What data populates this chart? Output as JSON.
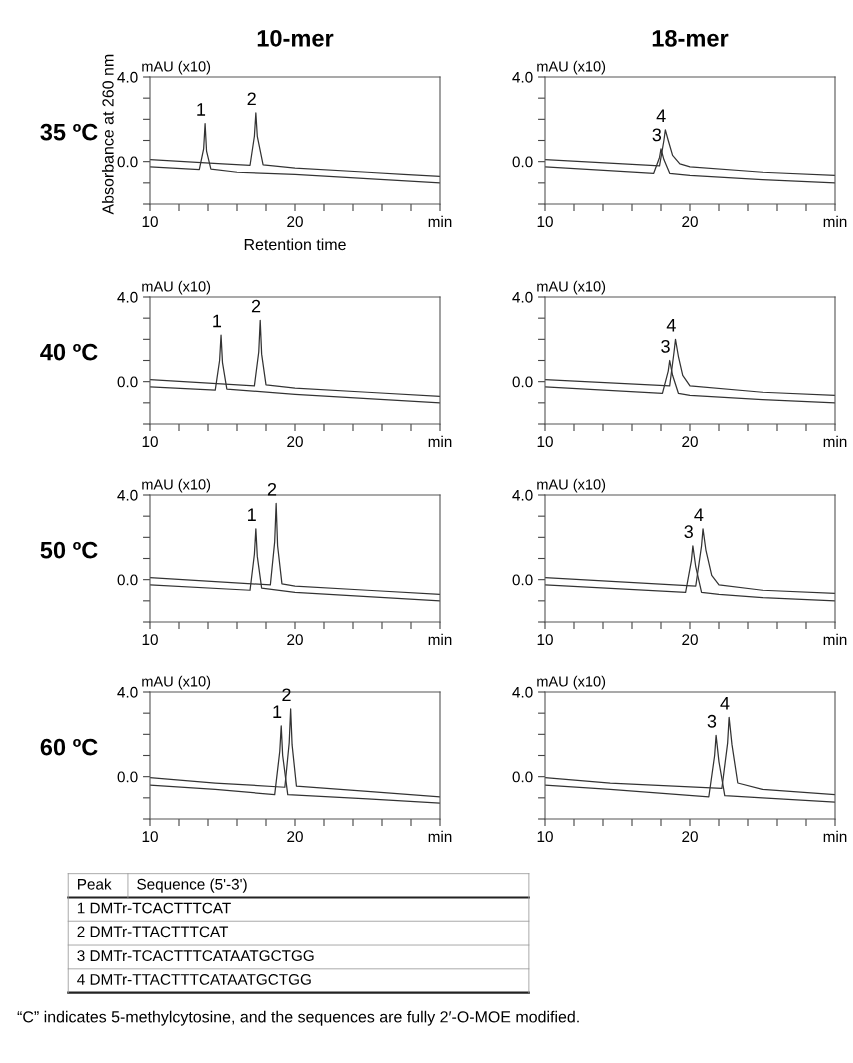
{
  "chart_data": [
    {
      "type": "line",
      "title": "10-mer",
      "subtitle": "35 ºC",
      "xlabel": "Retention time",
      "ylabel": "mAU (x10)",
      "xlim": [
        10,
        30
      ],
      "ylim": [
        -2,
        4
      ],
      "xticks": [
        10,
        {
          "value": 12,
          "label": null
        },
        {
          "value": 14,
          "label": null
        },
        {
          "value": 16,
          "label": null
        },
        {
          "value": 18,
          "label": null
        },
        20,
        {
          "value": 22,
          "label": null
        },
        {
          "value": 24,
          "label": null
        },
        {
          "value": 26,
          "label": null
        },
        {
          "value": 28,
          "label": null
        },
        {
          "value": 30,
          "label": "min"
        }
      ],
      "yticks": [
        {
          "value": -2,
          "label": null
        },
        {
          "value": -1,
          "label": null
        },
        {
          "value": 0,
          "label": "0.0"
        },
        {
          "value": 1,
          "label": null
        },
        {
          "value": 2,
          "label": null
        },
        {
          "value": 3,
          "label": null
        },
        {
          "value": 4,
          "label": "4.0"
        }
      ],
      "series": [
        {
          "color": "#333333",
          "x": [
            10,
            13.4,
            13.7,
            13.8,
            13.9,
            14.2,
            16,
            20,
            25,
            30
          ],
          "values": [
            -0.25,
            -0.38,
            0.6,
            1.8,
            0.5,
            -0.35,
            -0.5,
            -0.6,
            -0.8,
            -1.0
          ]
        },
        {
          "color": "#333333",
          "x": [
            10,
            15,
            16.9,
            17.2,
            17.3,
            17.4,
            17.8,
            20,
            25,
            27.5,
            30
          ],
          "values": [
            0.1,
            -0.1,
            -0.17,
            1.2,
            2.3,
            1.2,
            -0.15,
            -0.3,
            -0.5,
            -0.6,
            -0.7
          ]
        }
      ],
      "annotations": [
        "Absorbance at 260 nm",
        {
          "text": "1",
          "x": 13.8,
          "y": 1.8
        },
        {
          "text": "2",
          "x": 17.3,
          "y": 2.3
        }
      ]
    },
    {
      "type": "line",
      "title": "18-mer",
      "ylabel": "mAU (x10)",
      "xlim": [
        10,
        30
      ],
      "ylim": [
        -2,
        4
      ],
      "xticks": [
        10,
        {
          "value": 12,
          "label": null
        },
        {
          "value": 14,
          "label": null
        },
        {
          "value": 16,
          "label": null
        },
        {
          "value": 18,
          "label": null
        },
        20,
        {
          "value": 22,
          "label": null
        },
        {
          "value": 24,
          "label": null
        },
        {
          "value": 26,
          "label": null
        },
        {
          "value": 28,
          "label": null
        },
        {
          "value": 30,
          "label": "min"
        }
      ],
      "yticks": [
        {
          "value": -2,
          "label": null
        },
        {
          "value": -1,
          "label": null
        },
        {
          "value": 0,
          "label": "0.0"
        },
        {
          "value": 1,
          "label": null
        },
        {
          "value": 2,
          "label": null
        },
        {
          "value": 3,
          "label": null
        },
        {
          "value": 4,
          "label": "4.0"
        }
      ],
      "series": [
        {
          "color": "#333333",
          "x": [
            10,
            17.5,
            17.9,
            18.0,
            18.2,
            18.6,
            20,
            25,
            30
          ],
          "values": [
            -0.25,
            -0.55,
            0.2,
            0.6,
            0.1,
            -0.55,
            -0.65,
            -0.85,
            -1.0
          ]
        },
        {
          "color": "#333333",
          "x": [
            10,
            17.9,
            18.2,
            18.3,
            18.5,
            18.8,
            19.3,
            20,
            25,
            30
          ],
          "values": [
            0.1,
            -0.2,
            1.0,
            1.5,
            1.0,
            0.3,
            -0.1,
            -0.25,
            -0.5,
            -0.65
          ]
        }
      ],
      "annotations": [
        {
          "text": "3",
          "x": 18.0,
          "y": 0.6
        },
        {
          "text": "4",
          "x": 18.3,
          "y": 1.5
        }
      ]
    },
    {
      "type": "line",
      "subtitle": "40 ºC",
      "ylabel": "mAU (x10)",
      "xlim": [
        10,
        30
      ],
      "ylim": [
        -2,
        4
      ],
      "xticks": [
        10,
        {
          "value": 12,
          "label": null
        },
        {
          "value": 14,
          "label": null
        },
        {
          "value": 16,
          "label": null
        },
        {
          "value": 18,
          "label": null
        },
        20,
        {
          "value": 22,
          "label": null
        },
        {
          "value": 24,
          "label": null
        },
        {
          "value": 26,
          "label": null
        },
        {
          "value": 28,
          "label": null
        },
        {
          "value": 30,
          "label": "min"
        }
      ],
      "yticks": [
        {
          "value": -2,
          "label": null
        },
        {
          "value": -1,
          "label": null
        },
        {
          "value": 0,
          "label": "0.0"
        },
        {
          "value": 1,
          "label": null
        },
        {
          "value": 2,
          "label": null
        },
        {
          "value": 3,
          "label": null
        },
        {
          "value": 4,
          "label": "4.0"
        }
      ],
      "series": [
        {
          "color": "#333333",
          "x": [
            10,
            14.5,
            14.8,
            14.9,
            15.0,
            15.3,
            20,
            25,
            30
          ],
          "values": [
            -0.25,
            -0.4,
            1.0,
            2.2,
            0.9,
            -0.35,
            -0.6,
            -0.8,
            -1.0
          ]
        },
        {
          "color": "#333333",
          "x": [
            10,
            17.2,
            17.5,
            17.6,
            17.7,
            18.0,
            20,
            25,
            30
          ],
          "values": [
            0.1,
            -0.2,
            1.4,
            2.9,
            1.3,
            -0.15,
            -0.3,
            -0.5,
            -0.7
          ]
        }
      ],
      "annotations": [
        {
          "text": "1",
          "x": 14.9,
          "y": 2.2
        },
        {
          "text": "2",
          "x": 17.6,
          "y": 2.9
        }
      ]
    },
    {
      "type": "line",
      "ylabel": "mAU (x10)",
      "xlim": [
        10,
        30
      ],
      "ylim": [
        -2,
        4
      ],
      "xticks": [
        10,
        {
          "value": 12,
          "label": null
        },
        {
          "value": 14,
          "label": null
        },
        {
          "value": 16,
          "label": null
        },
        {
          "value": 18,
          "label": null
        },
        20,
        {
          "value": 22,
          "label": null
        },
        {
          "value": 24,
          "label": null
        },
        {
          "value": 26,
          "label": null
        },
        {
          "value": 28,
          "label": null
        },
        {
          "value": 30,
          "label": "min"
        }
      ],
      "yticks": [
        {
          "value": -2,
          "label": null
        },
        {
          "value": -1,
          "label": null
        },
        {
          "value": 0,
          "label": "0.0"
        },
        {
          "value": 1,
          "label": null
        },
        {
          "value": 2,
          "label": null
        },
        {
          "value": 3,
          "label": null
        },
        {
          "value": 4,
          "label": "4.0"
        }
      ],
      "series": [
        {
          "color": "#333333",
          "x": [
            10,
            18.1,
            18.5,
            18.6,
            18.8,
            19.2,
            20,
            25,
            30
          ],
          "values": [
            -0.25,
            -0.55,
            0.5,
            1.0,
            0.3,
            -0.55,
            -0.65,
            -0.85,
            -1.0
          ]
        },
        {
          "color": "#333333",
          "x": [
            10,
            18.6,
            18.9,
            19.0,
            19.2,
            19.5,
            20,
            25,
            30
          ],
          "values": [
            0.1,
            -0.2,
            1.4,
            2.0,
            1.2,
            0.3,
            -0.2,
            -0.5,
            -0.65
          ]
        }
      ],
      "annotations": [
        {
          "text": "3",
          "x": 18.6,
          "y": 1.0
        },
        {
          "text": "4",
          "x": 19.0,
          "y": 2.0
        }
      ]
    },
    {
      "type": "line",
      "subtitle": "50 ºC",
      "ylabel": "mAU (x10)",
      "xlim": [
        10,
        30
      ],
      "ylim": [
        -2,
        4
      ],
      "xticks": [
        10,
        {
          "value": 12,
          "label": null
        },
        {
          "value": 14,
          "label": null
        },
        {
          "value": 16,
          "label": null
        },
        {
          "value": 18,
          "label": null
        },
        20,
        {
          "value": 22,
          "label": null
        },
        {
          "value": 24,
          "label": null
        },
        {
          "value": 26,
          "label": null
        },
        {
          "value": 28,
          "label": null
        },
        {
          "value": 30,
          "label": "min"
        }
      ],
      "yticks": [
        {
          "value": -2,
          "label": null
        },
        {
          "value": -1,
          "label": null
        },
        {
          "value": 0,
          "label": "0.0"
        },
        {
          "value": 1,
          "label": null
        },
        {
          "value": 2,
          "label": null
        },
        {
          "value": 3,
          "label": null
        },
        {
          "value": 4,
          "label": "4.0"
        }
      ],
      "series": [
        {
          "color": "#333333",
          "x": [
            10,
            16.9,
            17.2,
            17.3,
            17.4,
            17.7,
            20,
            25,
            30
          ],
          "values": [
            -0.25,
            -0.5,
            1.2,
            2.4,
            1.1,
            -0.4,
            -0.6,
            -0.8,
            -1.0
          ]
        },
        {
          "color": "#333333",
          "x": [
            10,
            18.3,
            18.6,
            18.7,
            18.8,
            19.1,
            20,
            25,
            30
          ],
          "values": [
            0.1,
            -0.25,
            1.8,
            3.6,
            1.6,
            -0.2,
            -0.3,
            -0.5,
            -0.7
          ]
        }
      ],
      "annotations": [
        {
          "text": "1",
          "x": 17.3,
          "y": 2.4
        },
        {
          "text": "2",
          "x": 18.7,
          "y": 3.6
        }
      ]
    },
    {
      "type": "line",
      "ylabel": "mAU (x10)",
      "xlim": [
        10,
        30
      ],
      "ylim": [
        -2,
        4
      ],
      "xticks": [
        10,
        {
          "value": 12,
          "label": null
        },
        {
          "value": 14,
          "label": null
        },
        {
          "value": 16,
          "label": null
        },
        {
          "value": 18,
          "label": null
        },
        20,
        {
          "value": 22,
          "label": null
        },
        {
          "value": 24,
          "label": null
        },
        {
          "value": 26,
          "label": null
        },
        {
          "value": 28,
          "label": null
        },
        {
          "value": 30,
          "label": "min"
        }
      ],
      "yticks": [
        {
          "value": -2,
          "label": null
        },
        {
          "value": -1,
          "label": null
        },
        {
          "value": 0,
          "label": "0.0"
        },
        {
          "value": 1,
          "label": null
        },
        {
          "value": 2,
          "label": null
        },
        {
          "value": 3,
          "label": null
        },
        {
          "value": 4,
          "label": "4.0"
        }
      ],
      "series": [
        {
          "color": "#333333",
          "x": [
            10,
            19.7,
            20.1,
            20.2,
            20.4,
            20.8,
            22,
            25,
            30
          ],
          "values": [
            -0.25,
            -0.6,
            0.9,
            1.6,
            0.6,
            -0.6,
            -0.7,
            -0.85,
            -1.0
          ]
        },
        {
          "color": "#333333",
          "x": [
            10,
            20.4,
            20.8,
            20.9,
            21.1,
            21.5,
            22,
            25,
            30
          ],
          "values": [
            0.1,
            -0.3,
            1.6,
            2.4,
            1.4,
            0.2,
            -0.25,
            -0.5,
            -0.65
          ]
        }
      ],
      "annotations": [
        {
          "text": "3",
          "x": 20.2,
          "y": 1.6
        },
        {
          "text": "4",
          "x": 20.9,
          "y": 2.4
        }
      ]
    },
    {
      "type": "line",
      "subtitle": "60 ºC",
      "ylabel": "mAU (x10)",
      "xlim": [
        10,
        30
      ],
      "ylim": [
        -2,
        4
      ],
      "xticks": [
        10,
        {
          "value": 12,
          "label": null
        },
        {
          "value": 14,
          "label": null
        },
        {
          "value": 16,
          "label": null
        },
        {
          "value": 18,
          "label": null
        },
        20,
        {
          "value": 22,
          "label": null
        },
        {
          "value": 24,
          "label": null
        },
        {
          "value": 26,
          "label": null
        },
        {
          "value": 28,
          "label": null
        },
        {
          "value": 30,
          "label": "min"
        }
      ],
      "yticks": [
        {
          "value": -2,
          "label": null
        },
        {
          "value": -1,
          "label": null
        },
        {
          "value": 0,
          "label": "0.0"
        },
        {
          "value": 1,
          "label": null
        },
        {
          "value": 2,
          "label": null
        },
        {
          "value": 3,
          "label": null
        },
        {
          "value": 4,
          "label": "4.0"
        }
      ],
      "series": [
        {
          "color": "#333333",
          "x": [
            10,
            14.5,
            18.6,
            18.95,
            19.05,
            19.15,
            19.5,
            25,
            30
          ],
          "values": [
            -0.4,
            -0.6,
            -0.85,
            1.2,
            2.4,
            1.0,
            -0.85,
            -1.05,
            -1.25
          ]
        },
        {
          "color": "#333333",
          "x": [
            10,
            14.5,
            19.3,
            19.6,
            19.7,
            19.8,
            20.1,
            25,
            30
          ],
          "values": [
            -0.05,
            -0.3,
            -0.5,
            1.6,
            3.2,
            1.5,
            -0.45,
            -0.7,
            -0.95
          ]
        }
      ],
      "annotations": [
        {
          "text": "1",
          "x": 19.05,
          "y": 2.4
        },
        {
          "text": "2",
          "x": 19.7,
          "y": 3.2
        }
      ]
    },
    {
      "type": "line",
      "ylabel": "mAU (x10)",
      "xlim": [
        10,
        30
      ],
      "ylim": [
        -2,
        4
      ],
      "xticks": [
        10,
        {
          "value": 12,
          "label": null
        },
        {
          "value": 14,
          "label": null
        },
        {
          "value": 16,
          "label": null
        },
        {
          "value": 18,
          "label": null
        },
        20,
        {
          "value": 22,
          "label": null
        },
        {
          "value": 24,
          "label": null
        },
        {
          "value": 26,
          "label": null
        },
        {
          "value": 28,
          "label": null
        },
        {
          "value": 30,
          "label": "min"
        }
      ],
      "yticks": [
        {
          "value": -2,
          "label": null
        },
        {
          "value": -1,
          "label": null
        },
        {
          "value": 0,
          "label": "0.0"
        },
        {
          "value": 1,
          "label": null
        },
        {
          "value": 2,
          "label": null
        },
        {
          "value": 3,
          "label": null
        },
        {
          "value": 4,
          "label": "4.0"
        }
      ],
      "series": [
        {
          "color": "#333333",
          "x": [
            10,
            14.5,
            21.3,
            21.7,
            21.8,
            22.0,
            22.4,
            25,
            30
          ],
          "values": [
            -0.4,
            -0.6,
            -0.95,
            1.0,
            1.95,
            0.7,
            -0.9,
            -1.0,
            -1.2
          ]
        },
        {
          "color": "#333333",
          "x": [
            10,
            14.5,
            22.2,
            22.6,
            22.7,
            22.9,
            23.3,
            25,
            30
          ],
          "values": [
            -0.05,
            -0.3,
            -0.55,
            1.6,
            2.8,
            1.5,
            -0.3,
            -0.6,
            -0.85
          ]
        }
      ],
      "annotations": [
        {
          "text": "3",
          "x": 21.8,
          "y": 1.95
        },
        {
          "text": "4",
          "x": 22.7,
          "y": 2.8
        }
      ]
    },
    {
      "type": "other",
      "annotations": [
        "Peak",
        "Sequence (5'-3')",
        "1 DMTr-TCACTTTCAT",
        "2 DMTr-TTACTTTCAT",
        "3 DMTr-TCACTTTCATAATGCTGG",
        "4 DMTr-TTACTTTCATAATGCTGG",
        "“C” indicates 5-methylcytosine, and the sequences are fully 2′-O-MOE modified."
      ]
    }
  ]
}
